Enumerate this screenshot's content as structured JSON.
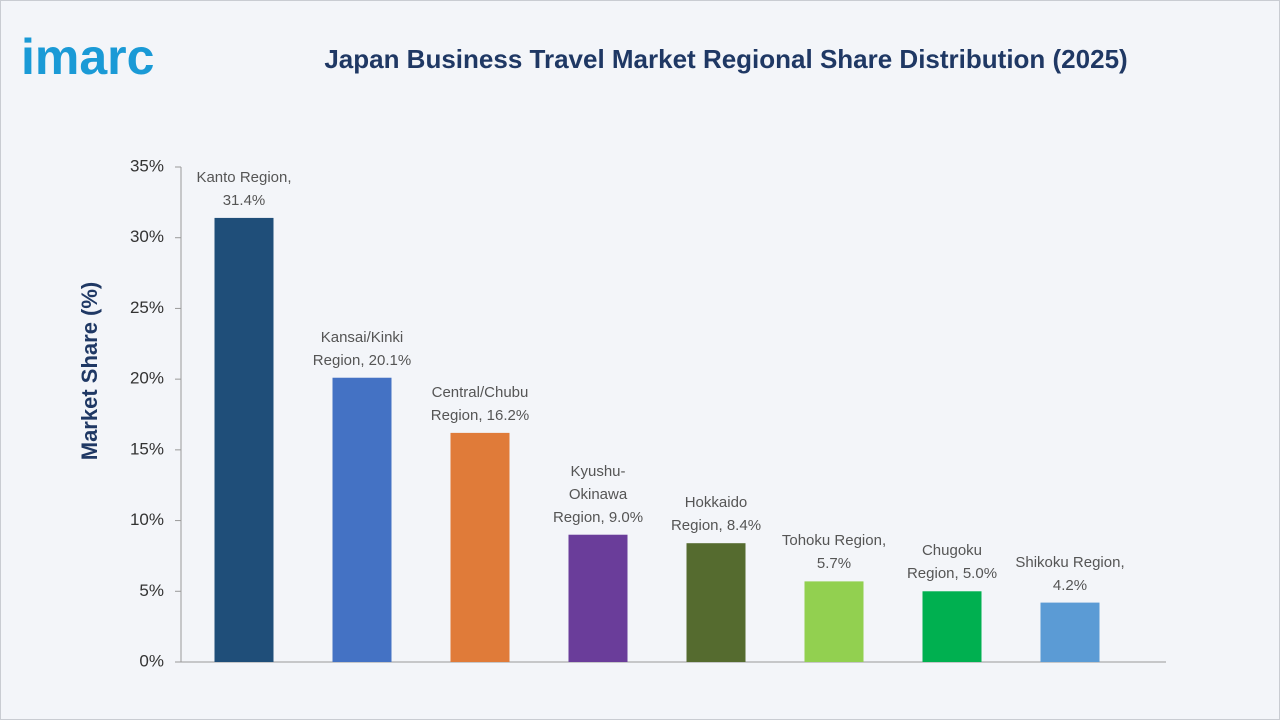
{
  "logo": "imarc",
  "chart_data": {
    "type": "bar",
    "title": "Japan Business Travel Market Regional Share Distribution (2025)",
    "y_label": "Market Share (%)",
    "categories": [
      null,
      null,
      null,
      null,
      null,
      null,
      null,
      null
    ],
    "values": [
      31.4,
      20.1,
      16.2,
      9.0,
      8.4,
      5.7,
      5.0,
      4.2
    ],
    "value_labels": [
      "Kanto Region, 31.4%",
      "Kansai/Kinki Region, 20.1%",
      "Central/Chubu Region, 16.2%",
      "Kyushu-Okinawa Region, 9.0%",
      "Hokkaido Region, 8.4%",
      "Tohoku Region, 5.7%",
      "Chugoku Region, 5.0%",
      "Shikoku Region, 4.2%"
    ],
    "colors": [
      "#1f4e79",
      "#4472c4",
      "#e07b39",
      "#6a3d9a",
      "#556b2f",
      "#92d050",
      "#00b050",
      "#5b9bd5"
    ],
    "ylim": [
      0,
      35
    ],
    "yticks": [
      {
        "value": 0,
        "label": "0%"
      },
      {
        "value": 5,
        "label": "5%"
      },
      {
        "value": 10,
        "label": "10%"
      },
      {
        "value": 15,
        "label": "15%"
      },
      {
        "value": 20,
        "label": "20%"
      },
      {
        "value": 25,
        "label": "25%"
      },
      {
        "value": 30,
        "label": "30%"
      },
      {
        "value": 35,
        "label": "35%"
      }
    ],
    "grid": false
  }
}
